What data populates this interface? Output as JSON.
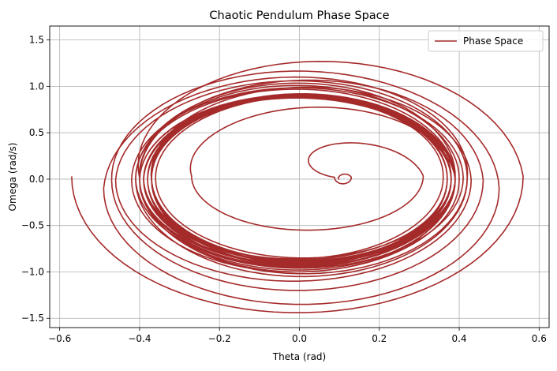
{
  "chart_data": {
    "type": "line",
    "title": "Chaotic Pendulum Phase Space",
    "xlabel": "Theta (rad)",
    "ylabel": "Omega (rad/s)",
    "xlim": [
      -0.6,
      0.6
    ],
    "ylim": [
      -1.5,
      1.5
    ],
    "x_ticks": [
      -0.6,
      -0.4,
      -0.2,
      0.0,
      0.2,
      0.4,
      0.6
    ],
    "x_tick_labels": [
      "−0.6",
      "−0.4",
      "−0.2",
      "0.0",
      "0.2",
      "0.4",
      "0.6"
    ],
    "y_ticks": [
      -1.5,
      -1.0,
      -0.5,
      0.0,
      0.5,
      1.0,
      1.5
    ],
    "y_tick_labels": [
      "−1.5",
      "−1.0",
      "−0.5",
      "0.0",
      "0.5",
      "1.0",
      "1.5"
    ],
    "grid": true,
    "legend_position": "top-right",
    "series": [
      {
        "name": "Phase Space",
        "color": "#a52a2a",
        "start": [
          0.1,
          0.0
        ],
        "loops": [
          {
            "theta_min": 0.088,
            "theta_max": 0.13,
            "omega_min": -0.05,
            "omega_max": 0.09
          },
          {
            "theta_min": -0.27,
            "theta_max": 0.31,
            "omega_min": -0.55,
            "omega_max": 0.62
          },
          {
            "theta_min": -0.4,
            "theta_max": 0.39,
            "omega_min": -0.92,
            "omega_max": 0.92
          },
          {
            "theta_min": -0.38,
            "theta_max": 0.39,
            "omega_min": -0.9,
            "omega_max": 0.9
          },
          {
            "theta_min": -0.37,
            "theta_max": 0.38,
            "omega_min": -0.88,
            "omega_max": 0.87
          },
          {
            "theta_min": -0.39,
            "theta_max": 0.36,
            "omega_min": -0.86,
            "omega_max": 0.89
          },
          {
            "theta_min": -0.36,
            "theta_max": 0.38,
            "omega_min": -0.85,
            "omega_max": 0.86
          },
          {
            "theta_min": -0.38,
            "theta_max": 0.37,
            "omega_min": -0.93,
            "omega_max": 0.92
          },
          {
            "theta_min": -0.37,
            "theta_max": 0.39,
            "omega_min": -0.91,
            "omega_max": 0.89
          },
          {
            "theta_min": -0.39,
            "theta_max": 0.38,
            "omega_min": -0.89,
            "omega_max": 0.91
          },
          {
            "theta_min": -0.37,
            "theta_max": 0.38,
            "omega_min": -0.9,
            "omega_max": 0.88
          },
          {
            "theta_min": -0.4,
            "theta_max": 0.39,
            "omega_min": -0.95,
            "omega_max": 0.94
          },
          {
            "theta_min": -0.38,
            "theta_max": 0.37,
            "omega_min": -0.87,
            "omega_max": 0.86
          },
          {
            "theta_min": -0.39,
            "theta_max": 0.38,
            "omega_min": -0.92,
            "omega_max": 0.9
          },
          {
            "theta_min": -0.37,
            "theta_max": 0.39,
            "omega_min": -0.88,
            "omega_max": 0.91
          },
          {
            "theta_min": -0.4,
            "theta_max": 0.39,
            "omega_min": -0.94,
            "omega_max": 0.93
          },
          {
            "theta_min": -0.38,
            "theta_max": 0.38,
            "omega_min": -0.89,
            "omega_max": 0.89
          },
          {
            "theta_min": -0.39,
            "theta_max": 0.37,
            "omega_min": -0.91,
            "omega_max": 0.92
          },
          {
            "theta_min": -0.37,
            "theta_max": 0.39,
            "omega_min": -0.93,
            "omega_max": 0.9
          },
          {
            "theta_min": -0.46,
            "theta_max": 0.43,
            "omega_min": -1.1,
            "omega_max": 1.08
          },
          {
            "theta_min": -0.4,
            "theta_max": 0.42,
            "omega_min": -1.02,
            "omega_max": 1.04
          },
          {
            "theta_min": -0.42,
            "theta_max": 0.4,
            "omega_min": -1.0,
            "omega_max": 0.98
          },
          {
            "theta_min": -0.41,
            "theta_max": 0.41,
            "omega_min": -0.96,
            "omega_max": 0.99
          },
          {
            "theta_min": -0.4,
            "theta_max": 0.39,
            "omega_min": -0.98,
            "omega_max": 0.95
          },
          {
            "theta_min": -0.47,
            "theta_max": 0.46,
            "omega_min": -1.2,
            "omega_max": 1.18
          },
          {
            "theta_min": -0.49,
            "theta_max": 0.5,
            "omega_min": -1.35,
            "omega_max": 1.15
          },
          {
            "theta_min": -0.41,
            "theta_max": 0.42,
            "omega_min": -1.05,
            "omega_max": 1.05
          },
          {
            "theta_min": -0.4,
            "theta_max": 0.39,
            "omega_min": -1.0,
            "omega_max": 1.02
          },
          {
            "theta_min": -0.57,
            "theta_max": 0.56,
            "omega_min": -1.44,
            "omega_max": 1.5
          }
        ]
      }
    ]
  }
}
